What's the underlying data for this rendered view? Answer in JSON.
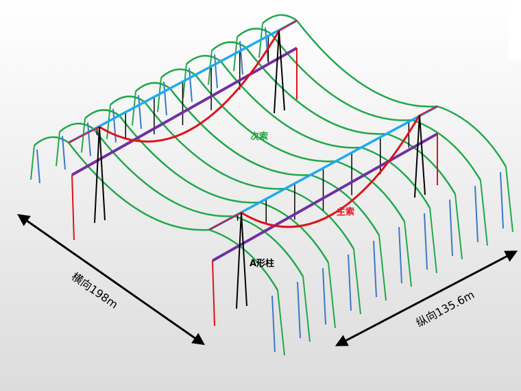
{
  "labels": {
    "secondary_cable": "次索",
    "main_cable": "主索",
    "a_column": "A形柱",
    "transverse": "横向198m",
    "longitudinal": "纵向135.6m"
  }
}
